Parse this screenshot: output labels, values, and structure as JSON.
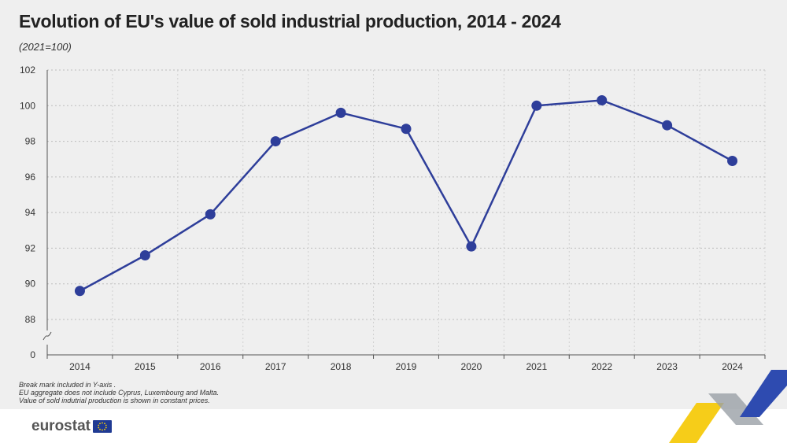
{
  "header": {
    "title": "Evolution of EU's value of sold industrial production, 2014 - 2024",
    "subtitle": "(2021=100)"
  },
  "notes": [
    "Break mark included in Y-axis .",
    "EU aggregate does not include Cyprus, Luxembourg and Malta.",
    "Value of sold indutrial production is shown in constant prices."
  ],
  "footer": {
    "logo_text": "eurostat"
  },
  "colors": {
    "line": "#2e3e9a",
    "grid": "#bdbdbd",
    "axis": "#555555",
    "background": "#efefef"
  },
  "chart_data": {
    "type": "line",
    "title": "Evolution of EU's value of sold industrial production, 2014 - 2024",
    "subtitle": "(2021=100)",
    "xlabel": "",
    "ylabel": "",
    "categories": [
      "2014",
      "2015",
      "2016",
      "2017",
      "2018",
      "2019",
      "2020",
      "2021",
      "2022",
      "2023",
      "2024"
    ],
    "series": [
      {
        "name": "Value of sold industrial production",
        "values": [
          89.6,
          91.6,
          93.9,
          98.0,
          99.6,
          98.7,
          92.1,
          100.0,
          100.3,
          98.9,
          96.9
        ]
      }
    ],
    "ylim": [
      0,
      102
    ],
    "axis_break": true,
    "yticks": [
      0,
      88,
      90,
      92,
      94,
      96,
      98,
      100,
      102
    ],
    "grid": true,
    "legend": "none"
  }
}
